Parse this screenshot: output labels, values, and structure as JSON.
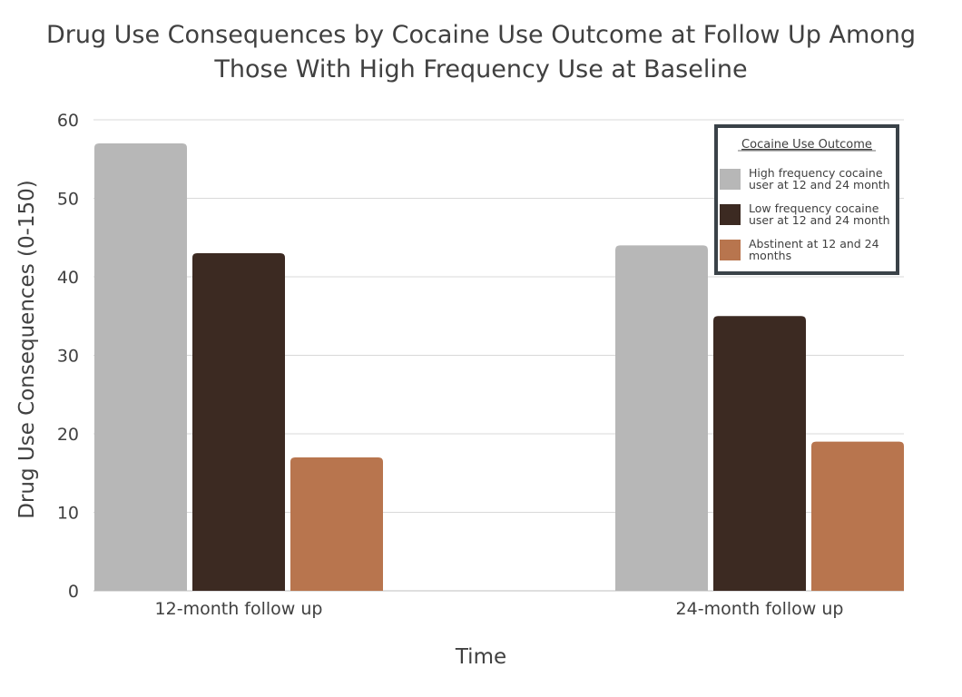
{
  "chart_data": {
    "type": "bar",
    "title": "Drug Use Consequences by Cocaine Use Outcome at Follow Up Among Those With High Frequency Use at Baseline",
    "title_lines": [
      "Drug Use Consequences by Cocaine Use Outcome at Follow Up Among",
      "Those With High Frequency Use at Baseline"
    ],
    "xlabel": "Time",
    "ylabel": "Drug Use Consequences (0-150)",
    "ylim": [
      0,
      60
    ],
    "yticks": [
      0,
      10,
      20,
      30,
      40,
      50,
      60
    ],
    "categories": [
      "12-month follow up",
      "24-month follow up"
    ],
    "grid": true,
    "legend": {
      "title": "Cocaine Use Outcome",
      "placement": "top-right"
    },
    "series": [
      {
        "name": "High frequency cocaine user at 12 and 24 month",
        "name_lines": [
          "High frequency cocaine",
          "user at 12 and 24 month"
        ],
        "color": "#b7b7b7",
        "values": [
          57,
          44
        ]
      },
      {
        "name": "Low frequency cocaine user at 12 and 24 month",
        "name_lines": [
          "Low frequency cocaine",
          "user at 12 and 24 month"
        ],
        "color": "#3c2a22",
        "values": [
          43,
          35
        ]
      },
      {
        "name": "Abstinent at 12 and 24 months",
        "name_lines": [
          "Abstinent at 12 and 24",
          "months"
        ],
        "color": "#b8754e",
        "values": [
          17,
          19
        ]
      }
    ]
  }
}
